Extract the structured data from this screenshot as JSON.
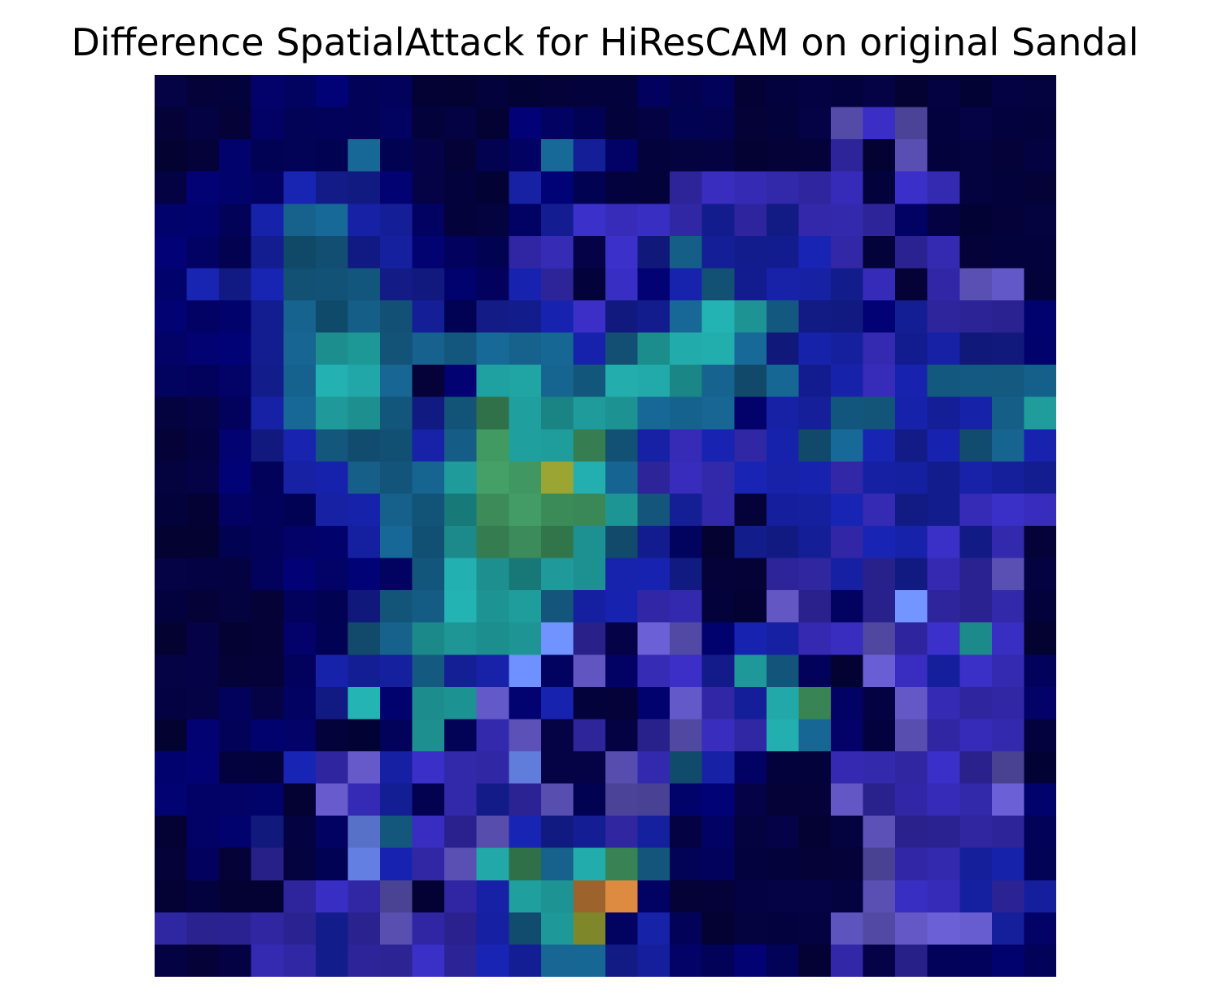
{
  "figure": {
    "title": "Difference SpatialAttack for HiResCAM on original Sandal"
  },
  "heatmap": {
    "rows": 28,
    "cols": 28,
    "axes": "off",
    "colormap_overlay": "jet over dark image (dominant tones: navy #000848, blue #2a3aa8, teal #1a8a8a, green #3a8a50, orange #c07838)",
    "hotspots": [
      {
        "region": "center",
        "color": "#96a030"
      },
      {
        "region": "bottom-center",
        "color": "#c07838"
      }
    ]
  }
}
